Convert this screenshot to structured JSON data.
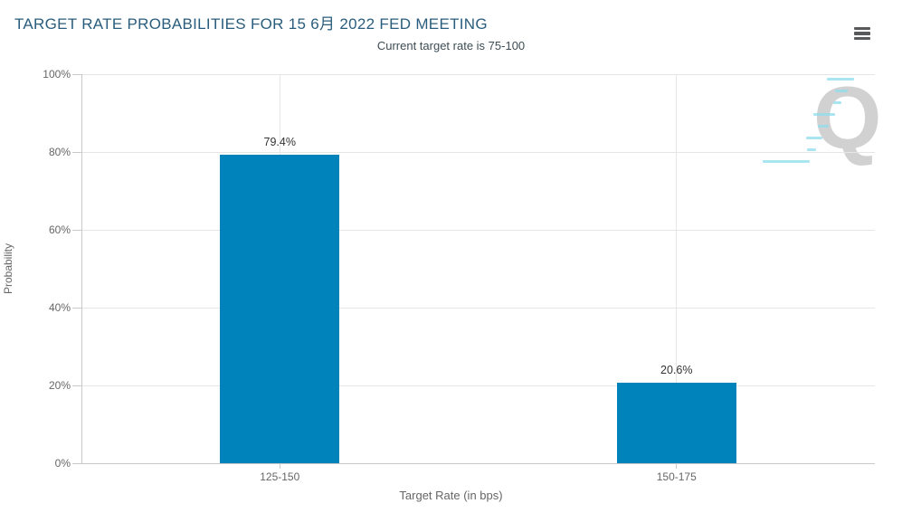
{
  "chart_data": {
    "type": "bar",
    "title": "TARGET RATE PROBABILITIES FOR 15 6月 2022 FED MEETING",
    "subtitle": "Current target rate is 75-100",
    "categories": [
      "125-150",
      "150-175"
    ],
    "values": [
      79.4,
      20.6
    ],
    "value_labels": [
      "79.4%",
      "20.6%"
    ],
    "xlabel": "Target Rate (in bps)",
    "ylabel": "Probability",
    "ylim": [
      0,
      100
    ],
    "ytick_step": 20,
    "ytick_labels": [
      "0%",
      "20%",
      "40%",
      "60%",
      "80%",
      "100%"
    ],
    "grid": true,
    "legend": false,
    "colors": {
      "bar": "#0082ba",
      "grid": "#e6e6e6",
      "axis": "#c9c9c9",
      "title": "#2a5d7d",
      "subtitle": "#3d4c54",
      "tick_text": "#666666",
      "axis_title_text": "#666666",
      "value_text": "#333333",
      "menu_icon": "#58595b",
      "watermark_q": "#c9c9c9",
      "watermark_dash": "#8ddcee"
    }
  },
  "watermark": {
    "letter": "Q"
  }
}
